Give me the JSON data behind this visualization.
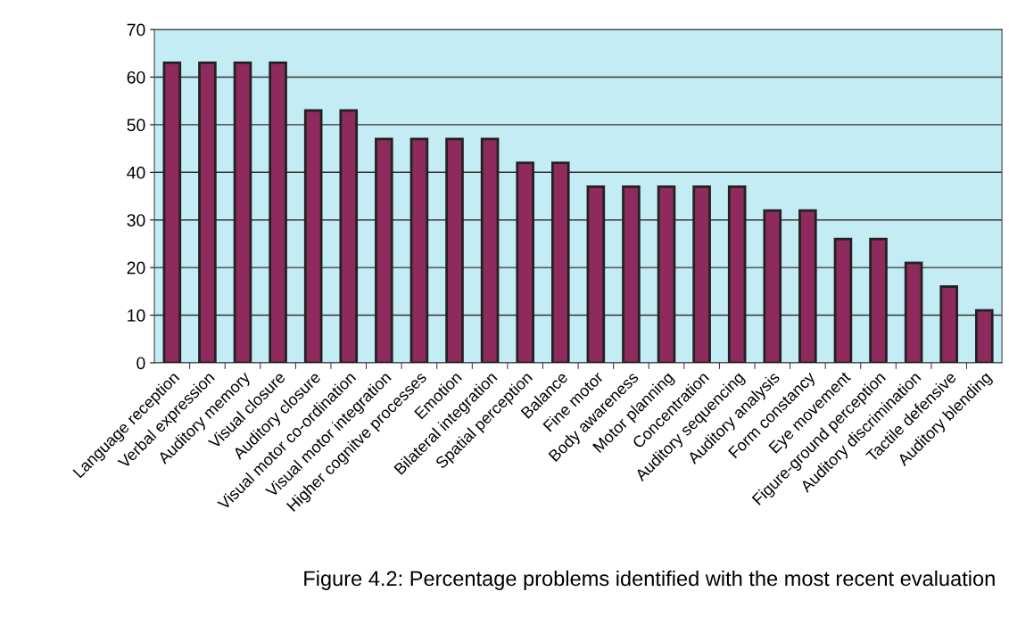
{
  "chart_data": {
    "type": "bar",
    "categories": [
      "Language reception",
      "Verbal expression",
      "Auditory memory",
      "Visual closure",
      "Auditory closure",
      "Visual motor co-ordination",
      "Visual motor integration",
      "Higher cognitve processes",
      "Emotion",
      "Bilateral integration",
      "Spatial perception",
      "Balance",
      "Fine motor",
      "Body awareness",
      "Motor planning",
      "Concentration",
      "Auditory sequencing",
      "Auditory analysis",
      "Form constancy",
      "Eye movement",
      "Figure-ground perception",
      "Auditory discrimination",
      "Tactile defensive",
      "Auditory blending"
    ],
    "values": [
      63,
      63,
      63,
      63,
      53,
      53,
      47,
      47,
      47,
      47,
      42,
      42,
      37,
      37,
      37,
      37,
      37,
      32,
      32,
      26,
      26,
      21,
      16,
      11
    ],
    "color": "#8e2a5c",
    "ylim": [
      0,
      70
    ],
    "yticks": [
      0,
      10,
      20,
      30,
      40,
      50,
      60,
      70
    ],
    "grid": "y",
    "annotations": [
      "Figure 4.2: Percentage problems identified with the most recent evaluation"
    ]
  }
}
